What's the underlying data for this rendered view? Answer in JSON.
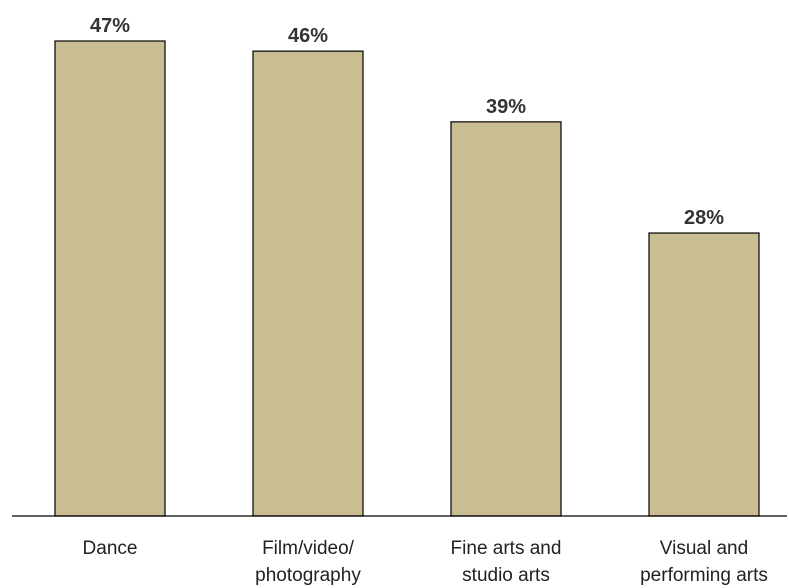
{
  "chart_data": {
    "type": "bar",
    "categories": [
      [
        "Dance"
      ],
      [
        "Film/video/",
        "photography"
      ],
      [
        "Fine arts and",
        "studio arts"
      ],
      [
        "Visual and",
        "performing arts"
      ]
    ],
    "values": [
      47,
      46,
      39,
      28
    ],
    "value_labels": [
      "47%",
      "46%",
      "39%",
      "28%"
    ],
    "ylim": [
      0,
      50
    ],
    "grid": false,
    "legend": "none",
    "bar_color": "#c9bd94",
    "bar_edge_color": "#000000",
    "axis_color": "#000000"
  }
}
